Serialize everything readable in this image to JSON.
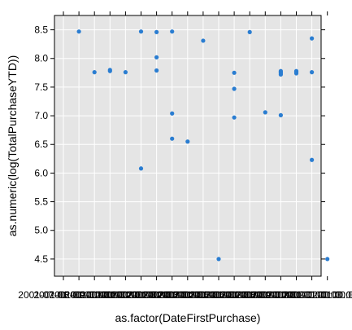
{
  "chart_data": {
    "type": "scatter",
    "title": "",
    "xlabel": "as.factor(DateFirstPurchase)",
    "ylabel": "as.numeric(log(TotalPurchaseYTD))",
    "ylim": [
      4.2,
      8.75
    ],
    "yticks": [
      "4.5",
      "5.0",
      "5.5",
      "6.0",
      "6.5",
      "7.0",
      "7.5",
      "8.0",
      "8.5"
    ],
    "categories": [
      "2001-07-01 00:00:00",
      "2001-08-01 00:00:00",
      "2001-09-01 00:00:00",
      "2001-10-01 00:00:00",
      "2001-11-01 00:00:00",
      "2001-12-01 00:00:00",
      "2002-01-01 00:00:00",
      "2002-02-01 00:00:00",
      "2002-03-01 00:00:00",
      "2002-04-01 00:00:00",
      "2002-05-01 00:00:00",
      "2002-06-01 00:00:00",
      "2002-07-01 00:00:00",
      "2002-08-01 00:00:00",
      "2002-09-01 00:00:00",
      "2002-10-01 00:00:00",
      "2002-11-01 00:00:00",
      "2002-12-01 00:00:00"
    ],
    "points": [
      {
        "x": 1,
        "y": 8.47
      },
      {
        "x": 2,
        "y": 7.76
      },
      {
        "x": 3,
        "y": 7.8
      },
      {
        "x": 3,
        "y": 7.78
      },
      {
        "x": 4,
        "y": 7.76
      },
      {
        "x": 5,
        "y": 8.47
      },
      {
        "x": 5,
        "y": 6.08
      },
      {
        "x": 6,
        "y": 8.46
      },
      {
        "x": 6,
        "y": 8.02
      },
      {
        "x": 6,
        "y": 7.79
      },
      {
        "x": 7,
        "y": 8.47
      },
      {
        "x": 7,
        "y": 7.04
      },
      {
        "x": 7,
        "y": 6.6
      },
      {
        "x": 8,
        "y": 6.55
      },
      {
        "x": 9,
        "y": 8.31
      },
      {
        "x": 10,
        "y": 4.5
      },
      {
        "x": 11,
        "y": 7.75
      },
      {
        "x": 11,
        "y": 7.47
      },
      {
        "x": 11,
        "y": 6.97
      },
      {
        "x": 12,
        "y": 8.46
      },
      {
        "x": 13,
        "y": 7.06
      },
      {
        "x": 14,
        "y": 7.78
      },
      {
        "x": 14,
        "y": 7.76
      },
      {
        "x": 14,
        "y": 7.74
      },
      {
        "x": 14,
        "y": 7.72
      },
      {
        "x": 14,
        "y": 7.01
      },
      {
        "x": 15,
        "y": 7.78
      },
      {
        "x": 15,
        "y": 7.76
      },
      {
        "x": 15,
        "y": 7.74
      },
      {
        "x": 16,
        "y": 8.35
      },
      {
        "x": 16,
        "y": 7.76
      },
      {
        "x": 16,
        "y": 6.23
      },
      {
        "x": 17,
        "y": 4.5
      }
    ],
    "grid": true,
    "colors": {
      "panel_bg": "#e5e5e5",
      "grid": "#ffffff",
      "point": "#2a7dd1",
      "axis": "#000000"
    }
  }
}
